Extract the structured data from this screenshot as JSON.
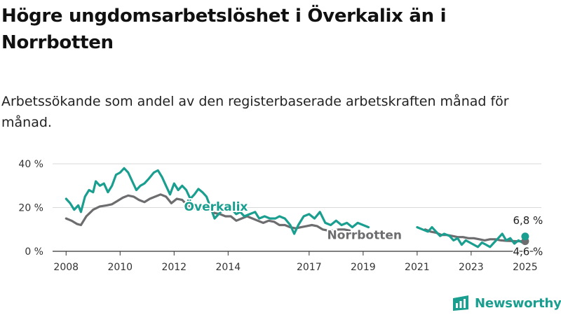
{
  "title": "Högre ungdomsarbetslöshet i Överkalix än i Norrbotten",
  "subtitle": "Arbetssökande som andel av den registerbaserade arbetskraften månad för månad.",
  "brand": {
    "name": "Newsworthy",
    "color": "#1a9e8f"
  },
  "chart_data": {
    "type": "line",
    "xlim": [
      2007.5,
      2025.6
    ],
    "ylim": [
      0,
      40
    ],
    "y_ticks": [
      0,
      20,
      40
    ],
    "y_tick_labels": [
      "0 %",
      "20 %",
      "40 %"
    ],
    "x_tick_labels": [
      "2008",
      "2010",
      "2012",
      "2014",
      "2017",
      "2019",
      "2021",
      "2023",
      "2025"
    ],
    "x_tick_values": [
      2008,
      2010,
      2012,
      2014,
      2017,
      2019,
      2021,
      2023,
      2025
    ],
    "grid": "horizontal",
    "series": [
      {
        "name": "Norrbotten",
        "color": "#6d6d70",
        "end_label": "4,6 %",
        "points": [
          [
            2008.0,
            15
          ],
          [
            2008.2,
            14
          ],
          [
            2008.4,
            12.5
          ],
          [
            2008.55,
            12
          ],
          [
            2008.75,
            16
          ],
          [
            2009.0,
            19
          ],
          [
            2009.25,
            20.5
          ],
          [
            2009.5,
            21
          ],
          [
            2009.7,
            21.5
          ],
          [
            2009.9,
            23
          ],
          [
            2010.1,
            24.5
          ],
          [
            2010.3,
            25.5
          ],
          [
            2010.5,
            25
          ],
          [
            2010.7,
            23.5
          ],
          [
            2010.9,
            22.5
          ],
          [
            2011.1,
            24
          ],
          [
            2011.3,
            25
          ],
          [
            2011.5,
            26
          ],
          [
            2011.7,
            25
          ],
          [
            2011.9,
            22
          ],
          [
            2012.1,
            24
          ],
          [
            2012.3,
            23.5
          ],
          [
            2012.5,
            21
          ],
          [
            2012.7,
            20
          ],
          [
            2012.9,
            19
          ],
          [
            2013.1,
            20
          ],
          [
            2013.3,
            19
          ],
          [
            2013.5,
            17.5
          ],
          [
            2013.7,
            17
          ],
          [
            2013.9,
            16
          ],
          [
            2014.1,
            16
          ],
          [
            2014.3,
            14
          ],
          [
            2014.5,
            15
          ],
          [
            2014.7,
            16
          ],
          [
            2014.9,
            15
          ],
          [
            2015.1,
            14
          ],
          [
            2015.3,
            13
          ],
          [
            2015.5,
            14
          ],
          [
            2015.7,
            13.5
          ],
          [
            2015.9,
            12
          ],
          [
            2016.1,
            12
          ],
          [
            2016.3,
            11
          ],
          [
            2016.5,
            10.5
          ],
          [
            2016.7,
            11
          ],
          [
            2016.9,
            11.5
          ],
          [
            2017.1,
            12
          ],
          [
            2017.3,
            11.5
          ],
          [
            2017.5,
            10
          ],
          [
            2017.7,
            9.5
          ],
          [
            2017.9,
            9.5
          ],
          [
            2018.1,
            10
          ],
          [
            2018.3,
            10
          ],
          [
            2018.5,
            9.5
          ]
        ],
        "points2": [
          [
            2021.3,
            10
          ],
          [
            2021.5,
            9
          ],
          [
            2021.7,
            8.5
          ],
          [
            2021.9,
            7.5
          ],
          [
            2022.1,
            7.5
          ],
          [
            2022.3,
            7
          ],
          [
            2022.5,
            6.5
          ],
          [
            2022.7,
            6.5
          ],
          [
            2022.9,
            6
          ],
          [
            2023.1,
            6
          ],
          [
            2023.3,
            5.5
          ],
          [
            2023.5,
            5
          ],
          [
            2023.7,
            5.5
          ],
          [
            2023.9,
            5.5
          ],
          [
            2024.1,
            5
          ],
          [
            2024.3,
            4.8
          ],
          [
            2024.5,
            4.7
          ],
          [
            2024.7,
            4.6
          ],
          [
            2025.0,
            4.6
          ]
        ]
      },
      {
        "name": "Överkalix",
        "color": "#1a9e8f",
        "end_label": "6,8 %",
        "points": [
          [
            2008.0,
            24
          ],
          [
            2008.15,
            22
          ],
          [
            2008.3,
            19
          ],
          [
            2008.45,
            21
          ],
          [
            2008.55,
            18
          ],
          [
            2008.7,
            25
          ],
          [
            2008.85,
            28
          ],
          [
            2009.0,
            27
          ],
          [
            2009.1,
            32
          ],
          [
            2009.25,
            30
          ],
          [
            2009.4,
            31
          ],
          [
            2009.55,
            27
          ],
          [
            2009.7,
            30
          ],
          [
            2009.85,
            35
          ],
          [
            2010.0,
            36
          ],
          [
            2010.15,
            38
          ],
          [
            2010.3,
            36
          ],
          [
            2010.45,
            32
          ],
          [
            2010.6,
            28
          ],
          [
            2010.75,
            30
          ],
          [
            2010.9,
            31
          ],
          [
            2011.05,
            33
          ],
          [
            2011.25,
            36
          ],
          [
            2011.4,
            37
          ],
          [
            2011.55,
            34
          ],
          [
            2011.7,
            30
          ],
          [
            2011.85,
            26
          ],
          [
            2012.0,
            31
          ],
          [
            2012.15,
            28
          ],
          [
            2012.3,
            30
          ],
          [
            2012.45,
            28
          ],
          [
            2012.6,
            24
          ],
          [
            2012.75,
            26
          ],
          [
            2012.9,
            28.5
          ],
          [
            2013.05,
            27
          ],
          [
            2013.2,
            25
          ],
          [
            2013.35,
            20
          ],
          [
            2013.5,
            15
          ],
          [
            2013.65,
            17
          ],
          [
            2013.8,
            19
          ],
          [
            2014.0,
            20
          ],
          [
            2014.15,
            19
          ],
          [
            2014.3,
            17
          ],
          [
            2014.45,
            18
          ],
          [
            2014.6,
            16
          ],
          [
            2014.8,
            17
          ],
          [
            2015.0,
            18
          ],
          [
            2015.15,
            15
          ],
          [
            2015.35,
            16
          ],
          [
            2015.55,
            15
          ],
          [
            2015.75,
            15
          ],
          [
            2015.9,
            16
          ],
          [
            2016.1,
            15
          ],
          [
            2016.3,
            12
          ],
          [
            2016.45,
            8
          ],
          [
            2016.6,
            12
          ],
          [
            2016.8,
            16
          ],
          [
            2017.0,
            17
          ],
          [
            2017.2,
            15
          ],
          [
            2017.4,
            18
          ],
          [
            2017.6,
            13
          ],
          [
            2017.8,
            12
          ],
          [
            2018.0,
            14
          ],
          [
            2018.2,
            12
          ],
          [
            2018.4,
            13
          ],
          [
            2018.6,
            11
          ],
          [
            2018.8,
            13
          ],
          [
            2019.0,
            12
          ],
          [
            2019.2,
            11
          ]
        ],
        "points2": [
          [
            2021.0,
            11
          ],
          [
            2021.2,
            10
          ],
          [
            2021.4,
            9
          ],
          [
            2021.55,
            11
          ],
          [
            2021.7,
            9
          ],
          [
            2021.85,
            7
          ],
          [
            2022.0,
            8
          ],
          [
            2022.2,
            7
          ],
          [
            2022.35,
            5
          ],
          [
            2022.5,
            6
          ],
          [
            2022.65,
            3
          ],
          [
            2022.8,
            5
          ],
          [
            2022.95,
            4
          ],
          [
            2023.1,
            3
          ],
          [
            2023.25,
            2
          ],
          [
            2023.4,
            4
          ],
          [
            2023.55,
            3
          ],
          [
            2023.7,
            2
          ],
          [
            2023.85,
            4
          ],
          [
            2024.0,
            6
          ],
          [
            2024.15,
            8
          ],
          [
            2024.3,
            5
          ],
          [
            2024.45,
            6
          ],
          [
            2024.6,
            3.5
          ],
          [
            2024.75,
            5
          ],
          [
            2024.9,
            4
          ],
          [
            2025.0,
            6.8
          ]
        ]
      }
    ]
  }
}
